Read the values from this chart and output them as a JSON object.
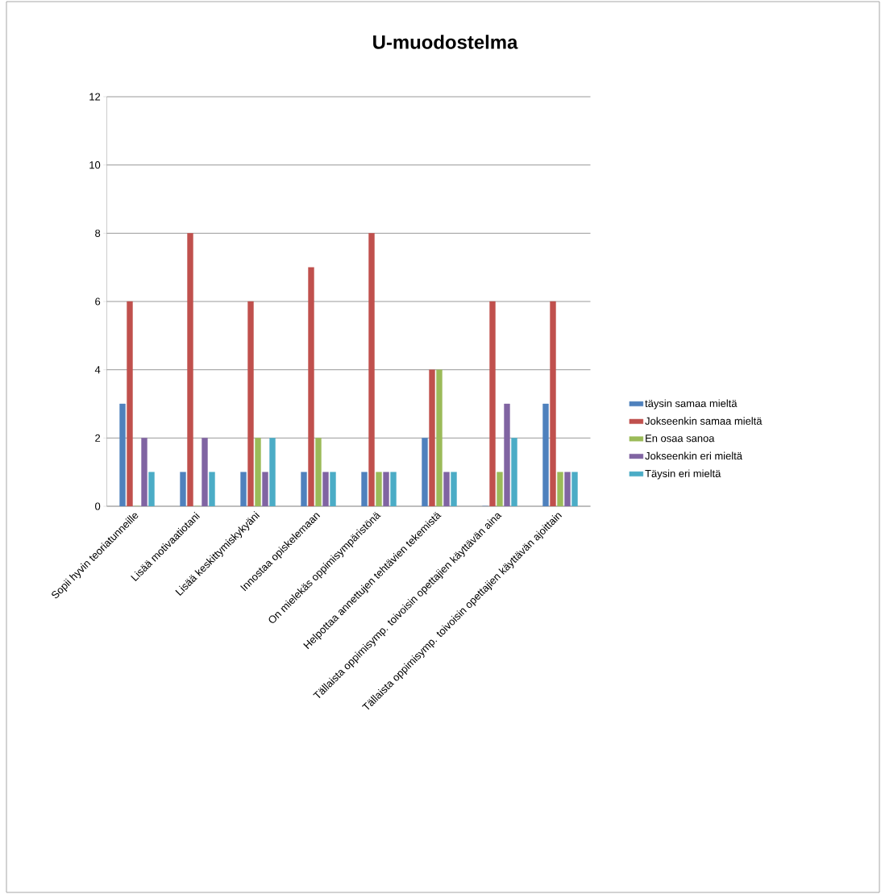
{
  "chart_data": {
    "type": "bar",
    "title": "U-muodostelma",
    "categories": [
      "Sopii hyvin teoriatunneille",
      "Lisää motivaatiotani",
      "Lisää keskittymiskykyäni",
      "Innostaa opiskelemaan",
      "On mielekäs oppimisympäristönä",
      "Helpottaa annettujen tehtävien tekemistä",
      "Tällaista oppimisymp. toivoisin opettajien käyttävän aina",
      "Tällaista oppimisymp. toivoisin opettajien käyttävän ajoittain"
    ],
    "series": [
      {
        "name": "täysin samaa mieltä",
        "color": "#4f81bd",
        "values": [
          3,
          1,
          1,
          1,
          1,
          2,
          0,
          3
        ]
      },
      {
        "name": "Jokseenkin samaa mieltä",
        "color": "#c0504d",
        "values": [
          6,
          8,
          6,
          7,
          8,
          4,
          6,
          6
        ]
      },
      {
        "name": "En osaa sanoa",
        "color": "#9bbb59",
        "values": [
          0,
          0,
          2,
          2,
          1,
          4,
          1,
          1
        ]
      },
      {
        "name": "Jokseenkin eri mieltä",
        "color": "#8064a2",
        "values": [
          2,
          2,
          1,
          1,
          1,
          1,
          3,
          1
        ]
      },
      {
        "name": "Täysin eri mieltä",
        "color": "#4bacc6",
        "values": [
          1,
          1,
          2,
          1,
          1,
          1,
          2,
          1
        ]
      }
    ],
    "ylim": [
      0,
      12
    ],
    "yticks": [
      0,
      2,
      4,
      6,
      8,
      10,
      12
    ],
    "grid": "y",
    "legend": "right"
  }
}
